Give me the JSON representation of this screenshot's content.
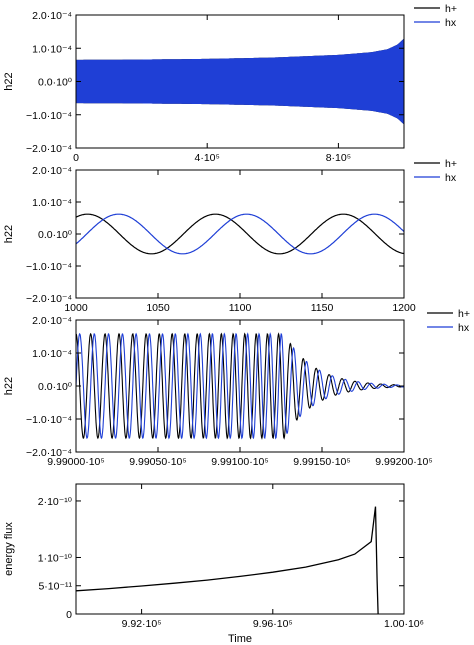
{
  "colors": {
    "hplus": "#000000",
    "hx": "#1f3fd6",
    "flux": "#000000"
  },
  "chart_data": [
    {
      "type": "line",
      "ylabel": "h22",
      "xlabel": "",
      "xlim": [
        0,
        1000000
      ],
      "ylim": [
        -0.0002,
        0.0002
      ],
      "xticks": [
        0,
        400000,
        800000
      ],
      "xtick_labels": [
        "0",
        "4·10⁵",
        "8·10⁵"
      ],
      "yticks": [
        0.0002,
        0.0001,
        0,
        -0.0001,
        -0.0002
      ],
      "ytick_labels": [
        "2.0·10⁻⁴",
        "1.0·10⁻⁴",
        "0.0·10⁰",
        "−1.0·10⁻⁴",
        "−2.0·10⁻⁴"
      ],
      "legend_position": "outside top-right",
      "series": [
        {
          "name": "h+",
          "color_key": "hplus",
          "envelope": {
            "x": [
              0,
              200000,
              400000,
              600000,
              800000,
              900000,
              950000,
              980000,
              999000
            ],
            "amp": [
              6.5e-05,
              6.6e-05,
              6.8e-05,
              7.2e-05,
              8e-05,
              8.8e-05,
              9.7e-05,
              0.000111,
              0.000128
            ]
          }
        },
        {
          "name": "hx",
          "color_key": "hx",
          "envelope": {
            "x": [
              0,
              200000,
              400000,
              600000,
              800000,
              900000,
              950000,
              980000,
              999000
            ],
            "amp": [
              6.5e-05,
              6.6e-05,
              6.8e-05,
              7.2e-05,
              8e-05,
              8.8e-05,
              9.7e-05,
              0.000111,
              0.000128
            ]
          }
        }
      ]
    },
    {
      "type": "line",
      "ylabel": "h22",
      "xlabel": "",
      "xlim": [
        1000,
        1200
      ],
      "ylim": [
        -0.0002,
        0.0002
      ],
      "xticks": [
        1000,
        1050,
        1100,
        1150,
        1200
      ],
      "xtick_labels": [
        "1000",
        "1050",
        "1100",
        "1150",
        "1200"
      ],
      "yticks": [
        0.0002,
        0.0001,
        0,
        -0.0001,
        -0.0002
      ],
      "ytick_labels": [
        "2.0·10⁻⁴",
        "1.0·10⁻⁴",
        "0.0·10⁰",
        "−1.0·10⁻⁴",
        "−2.0·10⁻⁴"
      ],
      "legend_position": "outside top-right",
      "series": [
        {
          "name": "h+",
          "color_key": "hplus",
          "amplitude": 6.2e-05,
          "period": 78,
          "peaks_at": [
            1007,
            1085,
            1163
          ]
        },
        {
          "name": "hx",
          "color_key": "hx",
          "amplitude": 6.2e-05,
          "period": 78,
          "peaks_at": [
            1026,
            1104,
            1182
          ]
        }
      ]
    },
    {
      "type": "line",
      "ylabel": "h22",
      "xlabel": "",
      "xlim": [
        999000,
        999200
      ],
      "ylim": [
        -0.0002,
        0.0002
      ],
      "xticks": [
        999000,
        999050,
        999100,
        999150,
        999200
      ],
      "xtick_labels": [
        "9.99000·10⁵",
        "9.99050·10⁵",
        "9.99100·10⁵",
        "9.99150·10⁵",
        "9.99200·10⁵"
      ],
      "yticks": [
        0.0002,
        0.0001,
        0,
        -0.0001,
        -0.0002
      ],
      "ytick_labels": [
        "2.0·10⁻⁴",
        "1.0·10⁻⁴",
        "0.0·10⁰",
        "−1.0·10⁻⁴",
        "−2.0·10⁻⁴"
      ],
      "legend_position": "outside top-right",
      "series": [
        {
          "name": "h+",
          "color_key": "hplus",
          "peak_amplitude": 0.000158,
          "merger_x": 999127,
          "ringdown_end": 999190,
          "cycles": 14
        },
        {
          "name": "hx",
          "color_key": "hx",
          "peak_amplitude": 0.000158,
          "merger_x": 999127,
          "ringdown_end": 999190,
          "cycles": 14
        }
      ]
    },
    {
      "type": "line",
      "ylabel": "energy flux",
      "xlabel": "Time",
      "xlim": [
        990000,
        1000000
      ],
      "ylim": [
        0,
        2.3e-10
      ],
      "xticks": [
        992000,
        996000,
        1000000
      ],
      "xtick_labels": [
        "9.92·10⁵",
        "9.96·10⁵",
        "1.00·10⁶"
      ],
      "yticks": [
        2e-10,
        1e-10,
        5e-11,
        0
      ],
      "ytick_labels": [
        "2·10⁻¹⁰",
        "1·10⁻¹⁰",
        "5·10⁻¹¹",
        "0"
      ],
      "series": [
        {
          "name": "",
          "color_key": "flux",
          "x": [
            990000,
            991000,
            992000,
            993000,
            994000,
            995000,
            996000,
            997000,
            998000,
            998500,
            999000,
            999130,
            999180,
            999210
          ],
          "y": [
            4.1e-11,
            4.5e-11,
            4.95e-11,
            5.45e-11,
            6e-11,
            6.65e-11,
            7.4e-11,
            8.3e-11,
            9.6e-11,
            1.06e-10,
            1.28e-10,
            1.9e-10,
            6e-11,
            0
          ]
        }
      ]
    }
  ]
}
